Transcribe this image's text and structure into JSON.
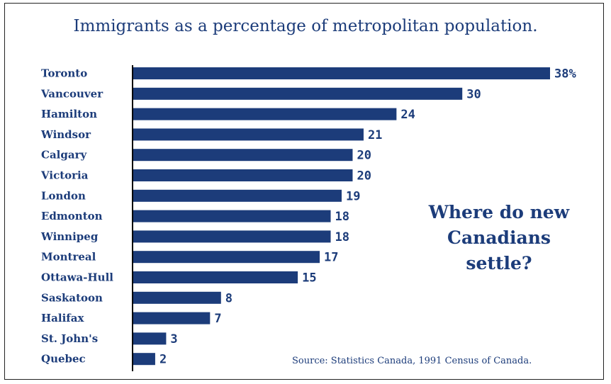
{
  "colors": {
    "bar": "#1c3c7a",
    "text": "#1c3c7a",
    "axis": "#000000"
  },
  "chart_data": {
    "type": "bar",
    "orientation": "horizontal",
    "title": "Immigrants as a percentage of metropolitan population.",
    "categories": [
      "Toronto",
      "Vancouver",
      "Hamilton",
      "Windsor",
      "Calgary",
      "Victoria",
      "London",
      "Edmonton",
      "Winnipeg",
      "Montreal",
      "Ottawa-Hull",
      "Saskatoon",
      "Halifax",
      "St. John's",
      "Quebec"
    ],
    "values": [
      38,
      30,
      24,
      21,
      20,
      20,
      19,
      18,
      18,
      17,
      15,
      8,
      7,
      3,
      2
    ],
    "value_labels": [
      "38%",
      "30",
      "24",
      "21",
      "20",
      "20",
      "19",
      "18",
      "18",
      "17",
      "15",
      "8",
      "7",
      "3",
      "2"
    ],
    "xlabel": "",
    "ylabel": "",
    "xlim": [
      0,
      38
    ],
    "grid": false
  },
  "callout_lines": [
    "Where do new",
    "Canadians",
    "settle?"
  ],
  "source": "Source: Statistics Canada, 1991 Census of Canada."
}
